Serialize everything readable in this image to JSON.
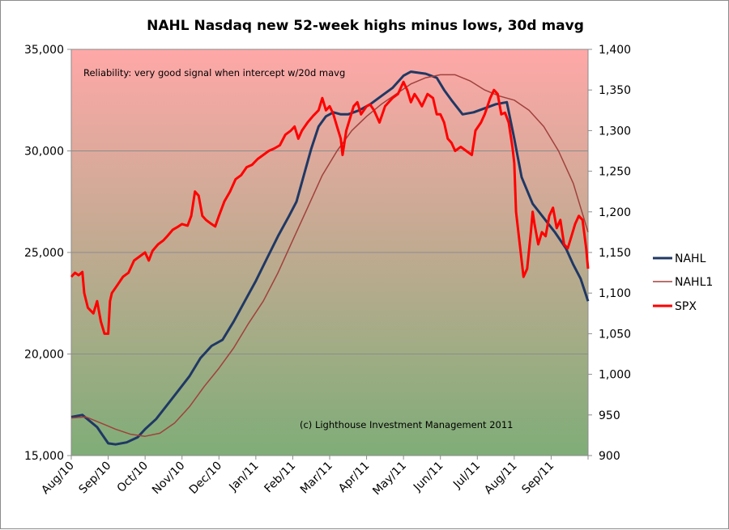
{
  "chart_data": {
    "type": "line",
    "title": "NAHL Nasdaq new 52-week highs minus lows, 30d mavg",
    "annotations": {
      "top": "Reliability: very good signal when intercept w/20d mavg",
      "bottom": "(c) Lighthouse Investment Management 2011"
    },
    "x_labels": [
      "Aug/10",
      "Sep/10",
      "Oct/10",
      "Nov/10",
      "Dec/10",
      "Jan/11",
      "Feb/11",
      "Mar/11",
      "Apr/11",
      "May/11",
      "Jun/11",
      "Jul/11",
      "Aug/11",
      "Sep/11"
    ],
    "x_domain": [
      0,
      14
    ],
    "y_left": {
      "min": 15000,
      "max": 35000,
      "ticks": [
        "15,000",
        "20,000",
        "25,000",
        "30,000",
        "35,000"
      ]
    },
    "y_right": {
      "min": 900,
      "max": 1400,
      "ticks": [
        "900",
        "950",
        "1,000",
        "1,050",
        "1,100",
        "1,150",
        "1,200",
        "1,250",
        "1,300",
        "1,350",
        "1,400"
      ]
    },
    "gridlines": true,
    "background_gradient": {
      "top": "#ffa8a8",
      "bottom": "#7fad78"
    },
    "legend_position": "right",
    "series": [
      {
        "name": "NAHL",
        "axis": "left",
        "color": "#1f3864",
        "points": [
          [
            0,
            16900
          ],
          [
            0.3,
            17000
          ],
          [
            0.5,
            16700
          ],
          [
            0.7,
            16400
          ],
          [
            0.85,
            16000
          ],
          [
            1.0,
            15600
          ],
          [
            1.2,
            15550
          ],
          [
            1.5,
            15650
          ],
          [
            1.8,
            15900
          ],
          [
            2.0,
            16300
          ],
          [
            2.3,
            16800
          ],
          [
            2.6,
            17500
          ],
          [
            2.9,
            18200
          ],
          [
            3.2,
            18900
          ],
          [
            3.5,
            19800
          ],
          [
            3.8,
            20400
          ],
          [
            4.1,
            20700
          ],
          [
            4.4,
            21600
          ],
          [
            4.7,
            22600
          ],
          [
            5.0,
            23600
          ],
          [
            5.3,
            24700
          ],
          [
            5.6,
            25800
          ],
          [
            5.9,
            26800
          ],
          [
            6.1,
            27500
          ],
          [
            6.3,
            28800
          ],
          [
            6.5,
            30100
          ],
          [
            6.7,
            31200
          ],
          [
            6.9,
            31700
          ],
          [
            7.1,
            31900
          ],
          [
            7.3,
            31800
          ],
          [
            7.5,
            31800
          ],
          [
            7.8,
            32000
          ],
          [
            8.1,
            32300
          ],
          [
            8.4,
            32700
          ],
          [
            8.7,
            33100
          ],
          [
            9.0,
            33700
          ],
          [
            9.2,
            33900
          ],
          [
            9.4,
            33850
          ],
          [
            9.6,
            33800
          ],
          [
            9.9,
            33600
          ],
          [
            10.1,
            33000
          ],
          [
            10.3,
            32500
          ],
          [
            10.6,
            31800
          ],
          [
            10.9,
            31900
          ],
          [
            11.2,
            32100
          ],
          [
            11.5,
            32300
          ],
          [
            11.8,
            32400
          ],
          [
            12.0,
            30600
          ],
          [
            12.2,
            28700
          ],
          [
            12.5,
            27400
          ],
          [
            12.8,
            26700
          ],
          [
            13.1,
            26000
          ],
          [
            13.4,
            25200
          ],
          [
            13.6,
            24400
          ],
          [
            13.8,
            23700
          ],
          [
            14.0,
            22600
          ]
        ]
      },
      {
        "name": "NAHL1",
        "axis": "left",
        "color": "#a0413c",
        "points": [
          [
            0,
            16850
          ],
          [
            0.4,
            16900
          ],
          [
            0.8,
            16600
          ],
          [
            1.2,
            16300
          ],
          [
            1.6,
            16050
          ],
          [
            2.0,
            15950
          ],
          [
            2.4,
            16100
          ],
          [
            2.8,
            16600
          ],
          [
            3.2,
            17400
          ],
          [
            3.6,
            18400
          ],
          [
            4.0,
            19300
          ],
          [
            4.4,
            20300
          ],
          [
            4.8,
            21500
          ],
          [
            5.2,
            22600
          ],
          [
            5.6,
            24000
          ],
          [
            6.0,
            25600
          ],
          [
            6.4,
            27200
          ],
          [
            6.8,
            28800
          ],
          [
            7.2,
            30000
          ],
          [
            7.6,
            31000
          ],
          [
            8.0,
            31700
          ],
          [
            8.4,
            32300
          ],
          [
            8.8,
            32800
          ],
          [
            9.2,
            33300
          ],
          [
            9.6,
            33600
          ],
          [
            10.0,
            33750
          ],
          [
            10.4,
            33750
          ],
          [
            10.8,
            33450
          ],
          [
            11.2,
            33000
          ],
          [
            11.6,
            32700
          ],
          [
            12.0,
            32500
          ],
          [
            12.4,
            32000
          ],
          [
            12.8,
            31200
          ],
          [
            13.2,
            30000
          ],
          [
            13.6,
            28400
          ],
          [
            14.0,
            26000
          ]
        ]
      },
      {
        "name": "SPX",
        "axis": "right",
        "color": "#ff0000",
        "points": [
          [
            0,
            1120
          ],
          [
            0.1,
            1125
          ],
          [
            0.2,
            1122
          ],
          [
            0.3,
            1126
          ],
          [
            0.35,
            1100
          ],
          [
            0.45,
            1082
          ],
          [
            0.6,
            1075
          ],
          [
            0.7,
            1090
          ],
          [
            0.8,
            1065
          ],
          [
            0.9,
            1050
          ],
          [
            1.0,
            1050
          ],
          [
            1.05,
            1090
          ],
          [
            1.1,
            1100
          ],
          [
            1.25,
            1110
          ],
          [
            1.4,
            1120
          ],
          [
            1.55,
            1125
          ],
          [
            1.7,
            1140
          ],
          [
            1.85,
            1145
          ],
          [
            2.0,
            1150
          ],
          [
            2.1,
            1140
          ],
          [
            2.2,
            1152
          ],
          [
            2.35,
            1160
          ],
          [
            2.5,
            1165
          ],
          [
            2.6,
            1170
          ],
          [
            2.75,
            1178
          ],
          [
            2.9,
            1182
          ],
          [
            3.0,
            1185
          ],
          [
            3.15,
            1183
          ],
          [
            3.25,
            1195
          ],
          [
            3.35,
            1225
          ],
          [
            3.45,
            1220
          ],
          [
            3.55,
            1195
          ],
          [
            3.65,
            1190
          ],
          [
            3.8,
            1185
          ],
          [
            3.9,
            1182
          ],
          [
            4.0,
            1195
          ],
          [
            4.15,
            1213
          ],
          [
            4.3,
            1225
          ],
          [
            4.45,
            1240
          ],
          [
            4.6,
            1245
          ],
          [
            4.75,
            1255
          ],
          [
            4.9,
            1258
          ],
          [
            5.05,
            1265
          ],
          [
            5.2,
            1270
          ],
          [
            5.35,
            1275
          ],
          [
            5.5,
            1278
          ],
          [
            5.65,
            1282
          ],
          [
            5.8,
            1295
          ],
          [
            5.95,
            1300
          ],
          [
            6.05,
            1305
          ],
          [
            6.15,
            1290
          ],
          [
            6.25,
            1300
          ],
          [
            6.4,
            1310
          ],
          [
            6.55,
            1318
          ],
          [
            6.7,
            1325
          ],
          [
            6.8,
            1340
          ],
          [
            6.9,
            1325
          ],
          [
            7.0,
            1330
          ],
          [
            7.1,
            1320
          ],
          [
            7.2,
            1305
          ],
          [
            7.3,
            1290
          ],
          [
            7.35,
            1270
          ],
          [
            7.45,
            1300
          ],
          [
            7.55,
            1315
          ],
          [
            7.65,
            1330
          ],
          [
            7.75,
            1335
          ],
          [
            7.85,
            1320
          ],
          [
            8.0,
            1330
          ],
          [
            8.1,
            1332
          ],
          [
            8.2,
            1325
          ],
          [
            8.35,
            1310
          ],
          [
            8.5,
            1330
          ],
          [
            8.6,
            1335
          ],
          [
            8.7,
            1340
          ],
          [
            8.85,
            1345
          ],
          [
            9.0,
            1360
          ],
          [
            9.1,
            1350
          ],
          [
            9.2,
            1335
          ],
          [
            9.3,
            1345
          ],
          [
            9.4,
            1338
          ],
          [
            9.5,
            1330
          ],
          [
            9.65,
            1345
          ],
          [
            9.8,
            1340
          ],
          [
            9.9,
            1320
          ],
          [
            10.0,
            1320
          ],
          [
            10.1,
            1310
          ],
          [
            10.2,
            1290
          ],
          [
            10.3,
            1285
          ],
          [
            10.4,
            1275
          ],
          [
            10.55,
            1280
          ],
          [
            10.7,
            1275
          ],
          [
            10.85,
            1270
          ],
          [
            10.95,
            1300
          ],
          [
            11.1,
            1310
          ],
          [
            11.2,
            1320
          ],
          [
            11.35,
            1340
          ],
          [
            11.45,
            1350
          ],
          [
            11.55,
            1345
          ],
          [
            11.65,
            1320
          ],
          [
            11.75,
            1322
          ],
          [
            11.85,
            1310
          ],
          [
            11.95,
            1280
          ],
          [
            12.0,
            1260
          ],
          [
            12.05,
            1200
          ],
          [
            12.15,
            1160
          ],
          [
            12.25,
            1120
          ],
          [
            12.35,
            1130
          ],
          [
            12.45,
            1175
          ],
          [
            12.5,
            1200
          ],
          [
            12.55,
            1185
          ],
          [
            12.65,
            1160
          ],
          [
            12.75,
            1175
          ],
          [
            12.85,
            1170
          ],
          [
            12.95,
            1195
          ],
          [
            13.05,
            1205
          ],
          [
            13.15,
            1180
          ],
          [
            13.25,
            1190
          ],
          [
            13.35,
            1160
          ],
          [
            13.45,
            1155
          ],
          [
            13.55,
            1170
          ],
          [
            13.65,
            1185
          ],
          [
            13.75,
            1195
          ],
          [
            13.85,
            1190
          ],
          [
            13.95,
            1155
          ],
          [
            14.0,
            1130
          ]
        ]
      }
    ]
  }
}
